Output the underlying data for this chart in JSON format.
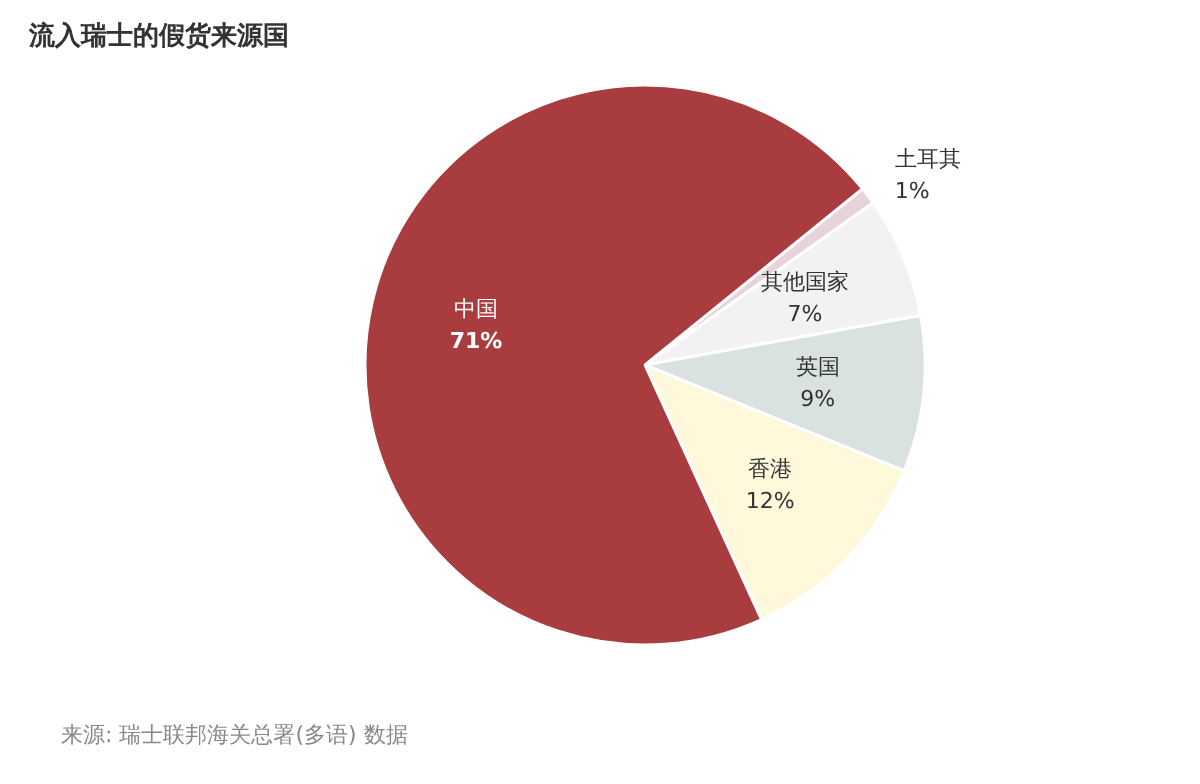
{
  "chart_data": {
    "type": "pie",
    "title": "流入瑞士的假货来源国",
    "categories": [
      "土耳其",
      "其他国家",
      "英国",
      "香港",
      "中国"
    ],
    "values": [
      1,
      7,
      9,
      12,
      71
    ],
    "value_labels": [
      "1%",
      "7%",
      "9%",
      "12%",
      "71%"
    ],
    "colors": [
      "#e8d3da",
      "#f2f2f2",
      "#d9e1e1",
      "#fff8db",
      "#a83c3f"
    ],
    "annotations": [
      "来源: 瑞士联邦海关总署(多语)  数据"
    ]
  }
}
